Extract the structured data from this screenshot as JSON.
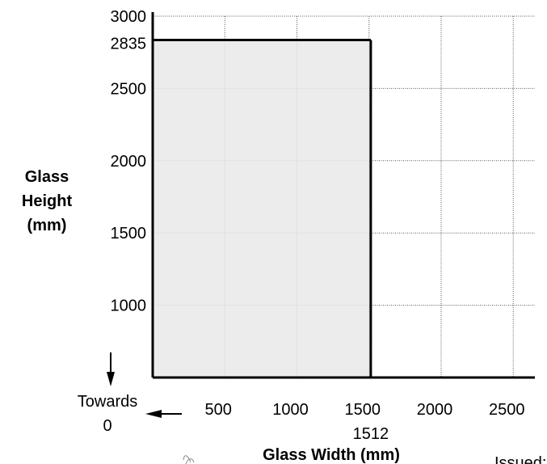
{
  "chart_data": {
    "type": "area",
    "xlabel": "Glass Width (mm)",
    "ylabel_lines": [
      "Glass",
      "Height",
      "(mm)"
    ],
    "x_ticks": [
      "500",
      "1000",
      "1500",
      "2000",
      "2500"
    ],
    "y_ticks": [
      "1000",
      "1500",
      "2000",
      "2500",
      "3000"
    ],
    "x_range": [
      0,
      2650
    ],
    "y_range": [
      500,
      3000
    ],
    "grid": true,
    "region": {
      "max_width": 1512,
      "max_height": 2835
    },
    "marker_labels": {
      "x": "1512",
      "y": "2835"
    },
    "annotation": {
      "line1": "Towards",
      "line2": "0"
    },
    "fill_color": "#e9e9e9",
    "line_color": "#000000"
  },
  "footer": {
    "issued_text": "Issued:"
  }
}
